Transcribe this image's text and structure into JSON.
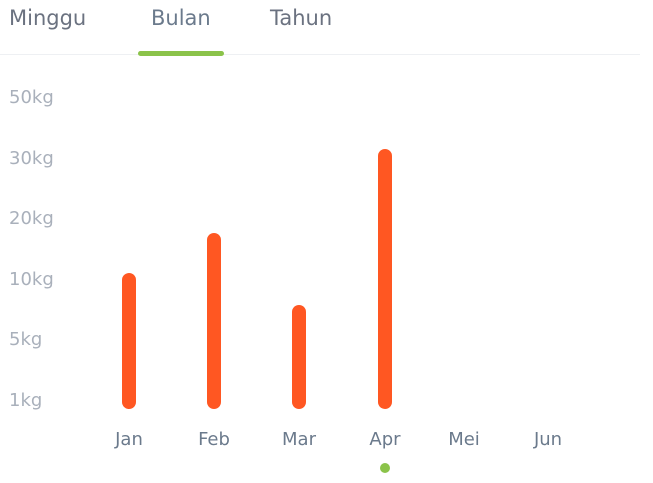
{
  "tabs": [
    {
      "label": "Minggu",
      "active": false
    },
    {
      "label": "Bulan",
      "active": true
    },
    {
      "label": "Tahun",
      "active": false
    }
  ],
  "colors": {
    "bar": "#ff5722",
    "accent": "#8bc34a",
    "tick": "#a9b0bb",
    "category": "#6b7a8c"
  },
  "chart_data": {
    "type": "bar",
    "categories": [
      "Jan",
      "Feb",
      "Mar",
      "Apr",
      "Mei",
      "Jun"
    ],
    "yticks": [
      "1kg",
      "5kg",
      "10kg",
      "20kg",
      "30kg",
      "50kg"
    ],
    "values": [
      10,
      16,
      7,
      30,
      null,
      null
    ],
    "ylim": [
      0,
      50
    ],
    "selected_category": "Apr",
    "grid": false
  }
}
